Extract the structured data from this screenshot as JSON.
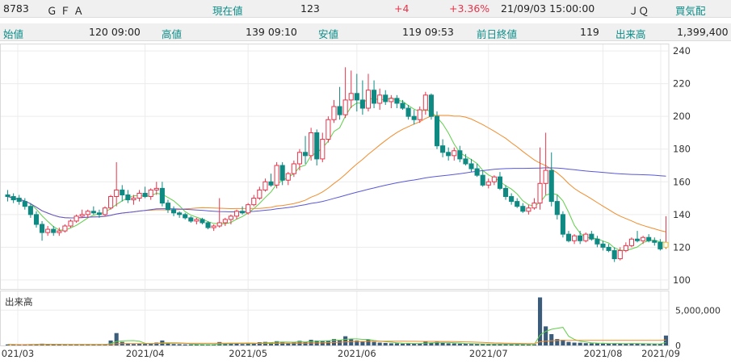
{
  "header": {
    "code": "8783",
    "name": "Ｇ Ｆ Ａ",
    "price_label": "現在値",
    "price": "123",
    "change": "+4",
    "change_pct": "+3.36%",
    "datetime": "21/09/03  15:00:00",
    "market": "ＪＱ",
    "board_label": "買気配",
    "open_label": "始値",
    "open": "120 09:00",
    "high_label": "高値",
    "high": "139 09:10",
    "low_label": "安値",
    "low": "119 09:53",
    "prev_label": "前日終値",
    "prev": "119",
    "volume_label": "出来高",
    "volume": "1,399,400"
  },
  "colors": {
    "up": "#e8334a",
    "down": "#0e8a83",
    "ma_short": "#5fcf4a",
    "ma_mid": "#f28c2c",
    "ma_long": "#5a57d6",
    "volume_bar": "#3b5c7a"
  },
  "chart_data": {
    "type": "candlestick",
    "price_axis": {
      "ticks": [
        100,
        120,
        140,
        160,
        180,
        200,
        220,
        240
      ],
      "range": [
        97,
        243
      ]
    },
    "volume_axis": {
      "label": "出来高",
      "ticks": [
        0,
        5000000
      ],
      "tick_labels": [
        "0",
        "5,000,000"
      ],
      "range": [
        0,
        7200000
      ]
    },
    "x_labels": [
      "021/03",
      "2021/04",
      "2021/05",
      "2021/06",
      "2021/07",
      "2021/08",
      "2021/09"
    ],
    "candles": [
      [
        152,
        155,
        148,
        151
      ],
      [
        151,
        153,
        147,
        149
      ],
      [
        150,
        152,
        146,
        148
      ],
      [
        148,
        150,
        143,
        145
      ],
      [
        145,
        147,
        138,
        140
      ],
      [
        140,
        142,
        132,
        134
      ],
      [
        134,
        136,
        124,
        129
      ],
      [
        129,
        133,
        127,
        131
      ],
      [
        131,
        133,
        127,
        129
      ],
      [
        129,
        132,
        127,
        130
      ],
      [
        130,
        134,
        129,
        133
      ],
      [
        133,
        137,
        132,
        136
      ],
      [
        136,
        140,
        135,
        139
      ],
      [
        139,
        143,
        138,
        140
      ],
      [
        140,
        143,
        138,
        142
      ],
      [
        142,
        145,
        140,
        141
      ],
      [
        141,
        143,
        138,
        140
      ],
      [
        140,
        145,
        139,
        144
      ],
      [
        144,
        152,
        143,
        151
      ],
      [
        151,
        172,
        145,
        155
      ],
      [
        155,
        158,
        148,
        152
      ],
      [
        152,
        155,
        147,
        149
      ],
      [
        149,
        152,
        146,
        150
      ],
      [
        150,
        155,
        148,
        153
      ],
      [
        153,
        157,
        150,
        151
      ],
      [
        151,
        156,
        149,
        155
      ],
      [
        155,
        160,
        152,
        156
      ],
      [
        156,
        160,
        145,
        147
      ],
      [
        147,
        149,
        141,
        143
      ],
      [
        143,
        145,
        139,
        141
      ],
      [
        141,
        142,
        138,
        140
      ],
      [
        140,
        141,
        137,
        138
      ],
      [
        138,
        139,
        135,
        136
      ],
      [
        136,
        138,
        134,
        137
      ],
      [
        137,
        138,
        134,
        135
      ],
      [
        135,
        136,
        131,
        132
      ],
      [
        132,
        134,
        130,
        133
      ],
      [
        133,
        150,
        132,
        135
      ],
      [
        135,
        138,
        133,
        137
      ],
      [
        137,
        140,
        134,
        139
      ],
      [
        139,
        143,
        137,
        142
      ],
      [
        142,
        145,
        140,
        141
      ],
      [
        141,
        147,
        140,
        146
      ],
      [
        146,
        152,
        145,
        150
      ],
      [
        150,
        157,
        149,
        155
      ],
      [
        155,
        162,
        154,
        160
      ],
      [
        160,
        165,
        157,
        158
      ],
      [
        158,
        172,
        156,
        170
      ],
      [
        170,
        172,
        158,
        161
      ],
      [
        161,
        166,
        158,
        165
      ],
      [
        165,
        173,
        163,
        171
      ],
      [
        171,
        180,
        167,
        178
      ],
      [
        178,
        188,
        171,
        176
      ],
      [
        176,
        193,
        173,
        190
      ],
      [
        190,
        192,
        170,
        174
      ],
      [
        174,
        190,
        172,
        186
      ],
      [
        186,
        200,
        184,
        198
      ],
      [
        198,
        210,
        196,
        206
      ],
      [
        206,
        218,
        198,
        201
      ],
      [
        201,
        230,
        199,
        210
      ],
      [
        210,
        228,
        205,
        214
      ],
      [
        214,
        226,
        203,
        210
      ],
      [
        210,
        222,
        201,
        205
      ],
      [
        205,
        226,
        203,
        216
      ],
      [
        216,
        222,
        205,
        208
      ],
      [
        208,
        217,
        204,
        213
      ],
      [
        213,
        216,
        207,
        209
      ],
      [
        209,
        213,
        205,
        211
      ],
      [
        211,
        213,
        205,
        208
      ],
      [
        208,
        210,
        204,
        205
      ],
      [
        205,
        207,
        198,
        200
      ],
      [
        200,
        204,
        195,
        198
      ],
      [
        198,
        206,
        196,
        204
      ],
      [
        204,
        215,
        201,
        213
      ],
      [
        213,
        214,
        198,
        200
      ],
      [
        200,
        203,
        180,
        182
      ],
      [
        182,
        186,
        175,
        178
      ],
      [
        178,
        181,
        173,
        176
      ],
      [
        176,
        181,
        173,
        179
      ],
      [
        179,
        182,
        172,
        174
      ],
      [
        174,
        177,
        170,
        171
      ],
      [
        171,
        174,
        166,
        168
      ],
      [
        168,
        171,
        163,
        164
      ],
      [
        164,
        167,
        157,
        158
      ],
      [
        158,
        162,
        156,
        160
      ],
      [
        160,
        164,
        158,
        163
      ],
      [
        163,
        166,
        155,
        156
      ],
      [
        156,
        158,
        149,
        151
      ],
      [
        151,
        153,
        146,
        148
      ],
      [
        148,
        150,
        144,
        145
      ],
      [
        145,
        147,
        141,
        142
      ],
      [
        142,
        146,
        140,
        144
      ],
      [
        144,
        150,
        143,
        147
      ],
      [
        147,
        181,
        143,
        159
      ],
      [
        159,
        190,
        152,
        167
      ],
      [
        167,
        178,
        145,
        148
      ],
      [
        148,
        152,
        137,
        140
      ],
      [
        140,
        142,
        126,
        128
      ],
      [
        128,
        130,
        123,
        124
      ],
      [
        124,
        128,
        122,
        127
      ],
      [
        127,
        130,
        122,
        124
      ],
      [
        124,
        129,
        123,
        128
      ],
      [
        128,
        130,
        124,
        125
      ],
      [
        125,
        127,
        120,
        122
      ],
      [
        122,
        124,
        118,
        120
      ],
      [
        120,
        122,
        117,
        118
      ],
      [
        118,
        120,
        111,
        113
      ],
      [
        113,
        120,
        112,
        118
      ],
      [
        118,
        123,
        117,
        121
      ],
      [
        121,
        126,
        120,
        125
      ],
      [
        125,
        130,
        123,
        124
      ],
      [
        124,
        127,
        122,
        126
      ],
      [
        126,
        128,
        123,
        124
      ],
      [
        124,
        126,
        121,
        123
      ],
      [
        123,
        125,
        118,
        119
      ],
      [
        120,
        139,
        119,
        123
      ]
    ],
    "volumes": [
      140000,
      110000,
      90000,
      130000,
      160000,
      170000,
      250000,
      140000,
      110000,
      120000,
      100000,
      130000,
      160000,
      120000,
      110000,
      130000,
      100000,
      140000,
      700000,
      1750000,
      500000,
      300000,
      200000,
      250000,
      220000,
      280000,
      400000,
      700000,
      300000,
      200000,
      180000,
      150000,
      130000,
      120000,
      110000,
      130000,
      150000,
      480000,
      250000,
      300000,
      250000,
      200000,
      280000,
      350000,
      450000,
      500000,
      400000,
      600000,
      500000,
      350000,
      450000,
      650000,
      500000,
      800000,
      700000,
      600000,
      700000,
      900000,
      800000,
      1300000,
      900000,
      700000,
      600000,
      800000,
      500000,
      400000,
      350000,
      300000,
      300000,
      250000,
      300000,
      250000,
      280000,
      600000,
      400000,
      500000,
      350000,
      300000,
      280000,
      250000,
      220000,
      200000,
      220000,
      200000,
      180000,
      200000,
      220000,
      180000,
      160000,
      150000,
      140000,
      150000,
      160000,
      6800000,
      2700000,
      1600000,
      900000,
      800000,
      500000,
      400000,
      380000,
      320000,
      300000,
      280000,
      260000,
      240000,
      320000,
      260000,
      240000,
      300000,
      260000,
      220000,
      200000,
      180000,
      200000,
      1399400
    ]
  }
}
